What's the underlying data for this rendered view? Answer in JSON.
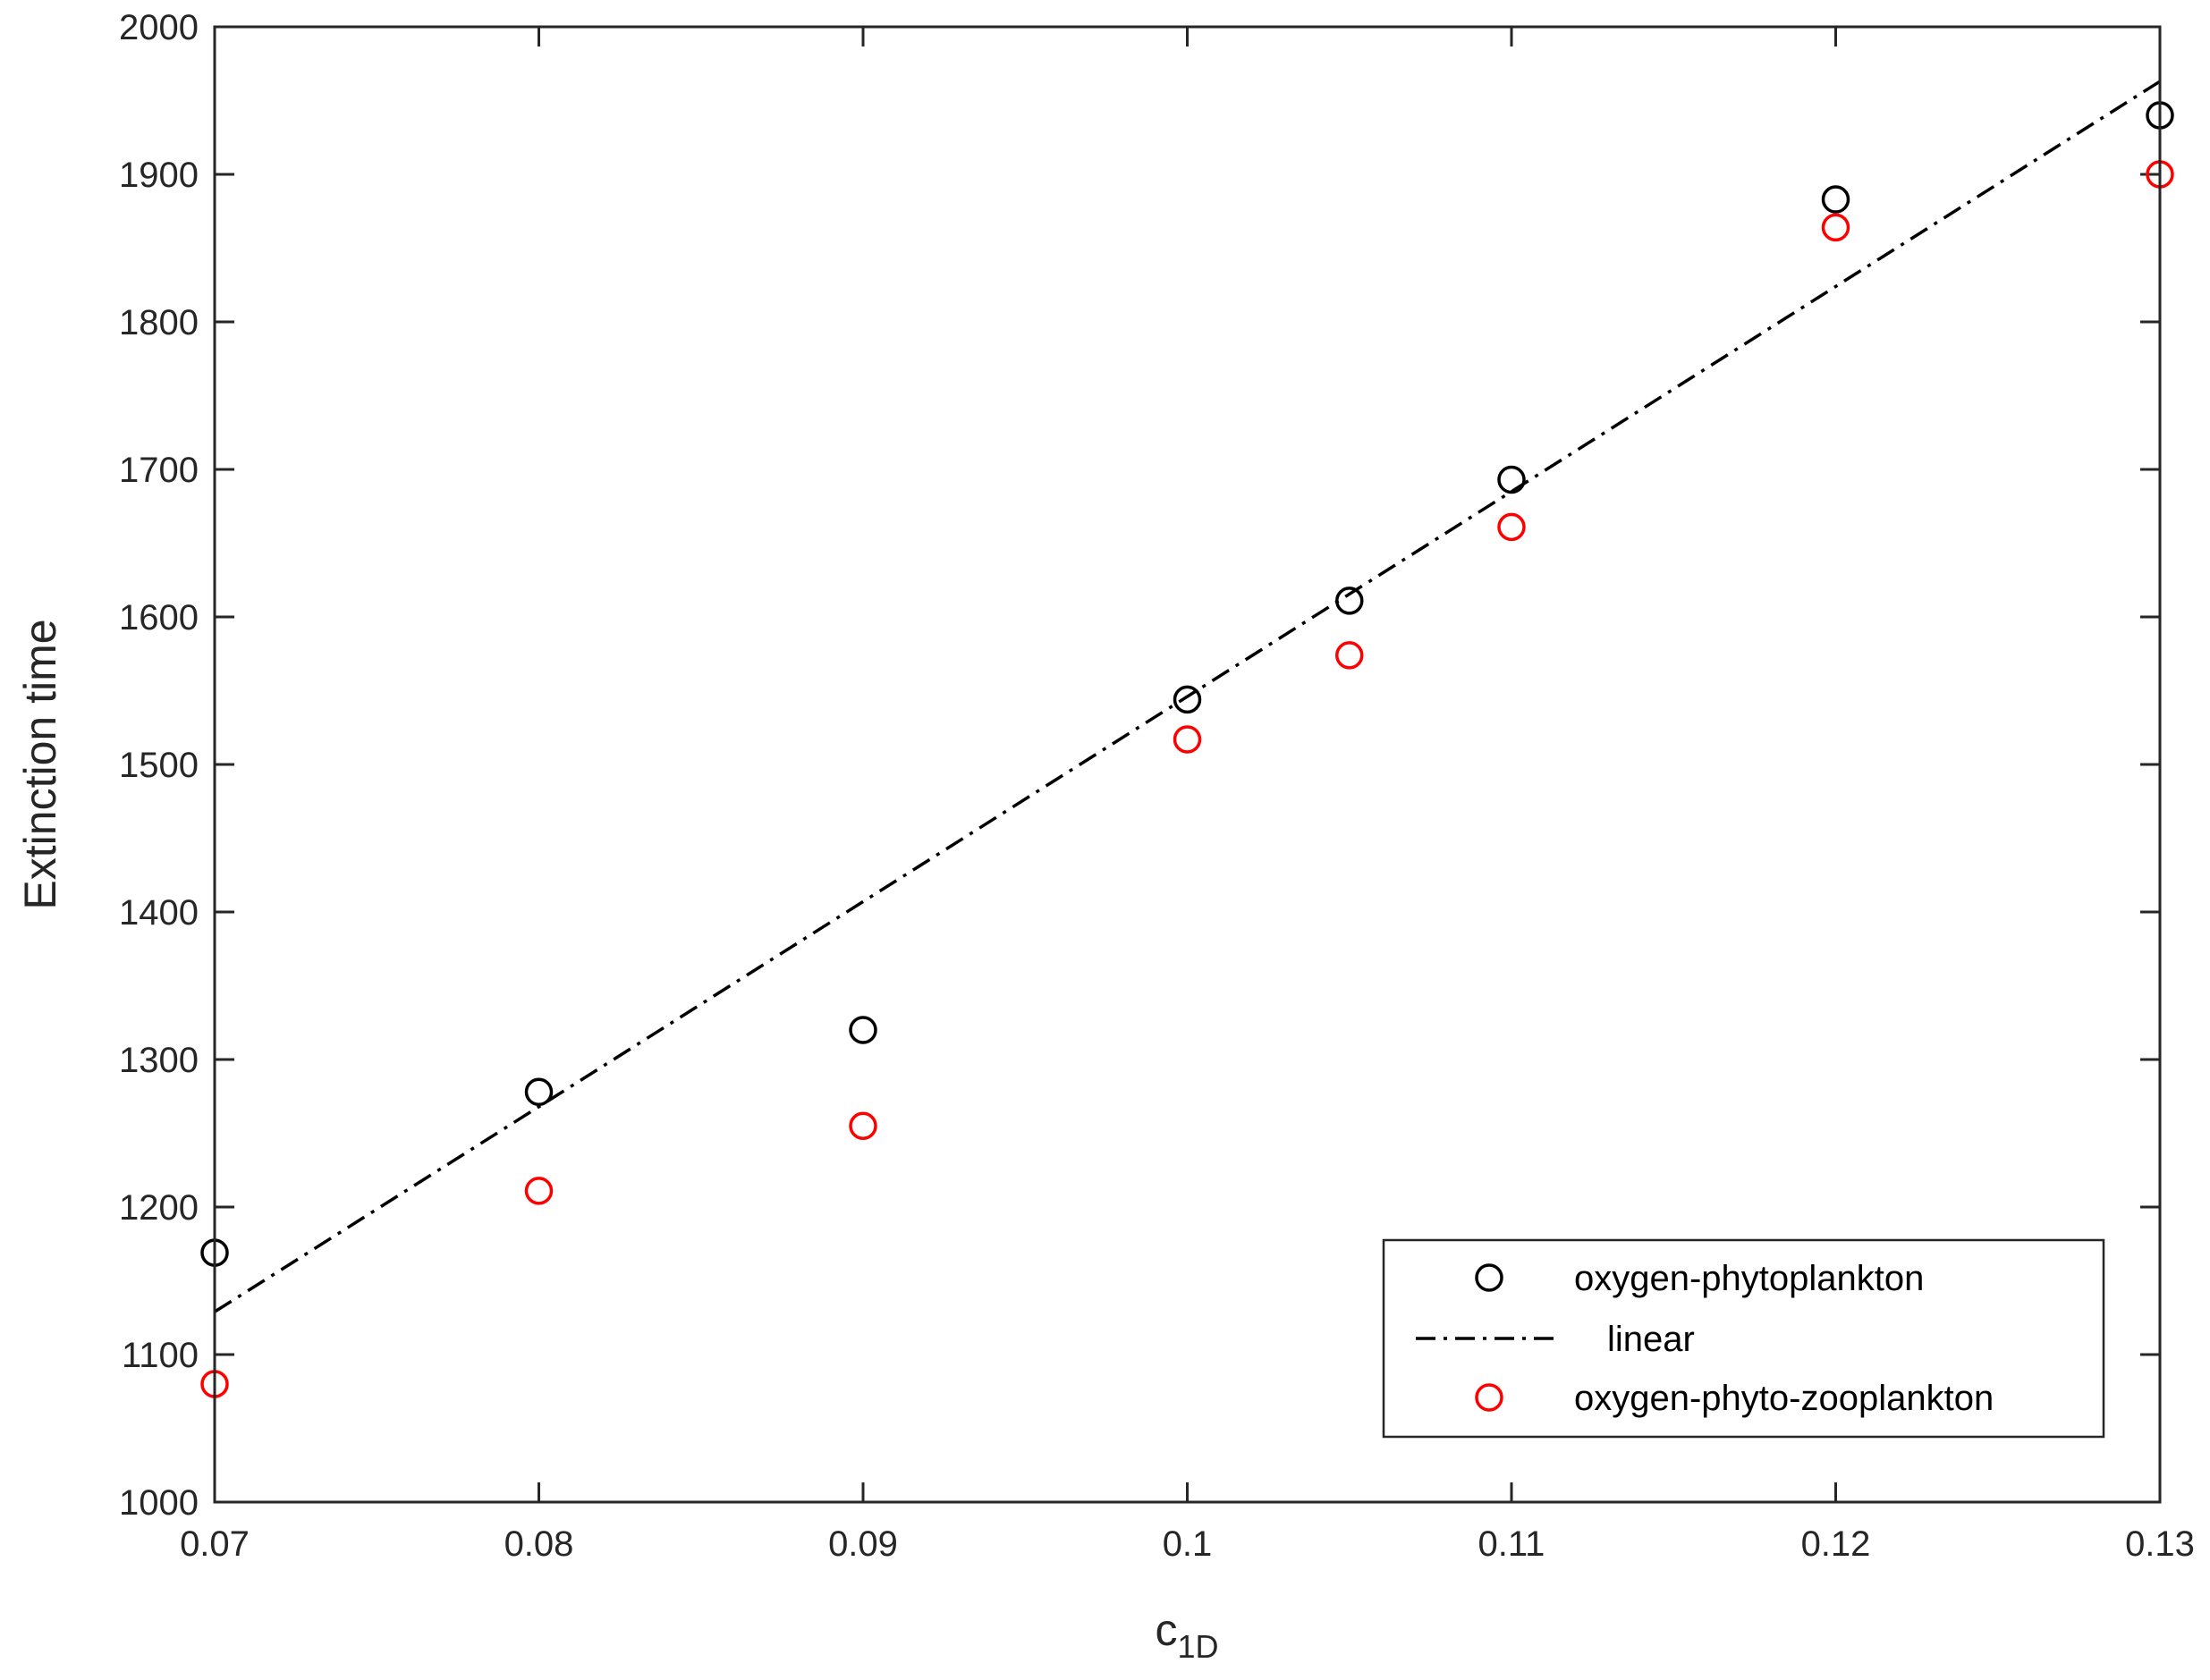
{
  "chart_data": {
    "type": "scatter",
    "xlabel": "c",
    "xlabel_sub": "1D",
    "ylabel": "Extinction time",
    "xlim": [
      0.07,
      0.13
    ],
    "ylim": [
      1000,
      2000
    ],
    "xticks": [
      "0.07",
      "0.08",
      "0.09",
      "0.1",
      "0.11",
      "0.12",
      "0.13"
    ],
    "yticks": [
      "1000",
      "1100",
      "1200",
      "1300",
      "1400",
      "1500",
      "1600",
      "1700",
      "1800",
      "1900",
      "2000"
    ],
    "grid": false,
    "legend_position": "bottom-right",
    "series": [
      {
        "name": "oxygen-phytoplankton",
        "marker": "circle",
        "color": "#000000",
        "x": [
          0.07,
          0.08,
          0.09,
          0.1,
          0.105,
          0.11,
          0.12,
          0.13
        ],
        "y": [
          1169,
          1278,
          1320,
          1544,
          1611,
          1693,
          1883,
          1940
        ]
      },
      {
        "name": "linear",
        "line": "dash-dot",
        "color": "#000000",
        "x": [
          0.07,
          0.13
        ],
        "y": [
          1129,
          1963
        ]
      },
      {
        "name": "oxygen-phyto-zooplankton",
        "marker": "circle",
        "color": "#ff0000",
        "x": [
          0.07,
          0.08,
          0.09,
          0.1,
          0.105,
          0.11,
          0.12,
          0.13
        ],
        "y": [
          1080,
          1211,
          1255,
          1517,
          1574,
          1661,
          1864,
          1900
        ]
      }
    ]
  }
}
